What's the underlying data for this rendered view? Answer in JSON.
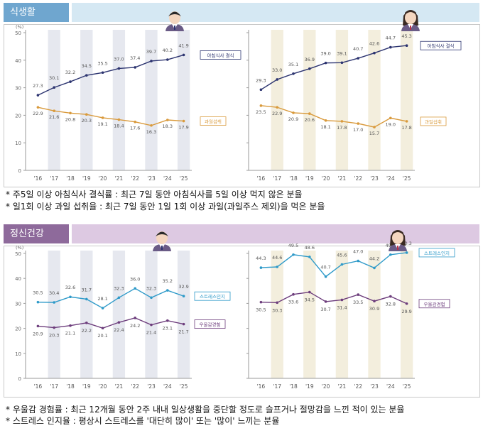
{
  "diet": {
    "title": "식생활",
    "notes": [
      "* 주5일 이상 아침식사 결식률 : 최근 7일 동안 아침식사를 5일 이상 먹지 않은 분율",
      "* 일1회 이상 과일 섭취율 : 최근 7일 동안 1일 1회 이상 과일(과일주스 제외)을 먹은 분율"
    ]
  },
  "mental": {
    "title": "정신건강",
    "notes": [
      "* 우울감 경험률 : 최근 12개월 동안 2주 내내 일상생활을 중단할 정도로 슬프거나 절망감을 느낀 적이 있는 분율",
      "* 스트레스 인지율 : 평상시 스트레스를 '대단히 많이' 또는 '많이' 느끼는 분율"
    ]
  },
  "chart_data": [
    {
      "type": "line",
      "x": [
        "'16",
        "'17",
        "'18",
        "'19",
        "'20",
        "'21",
        "'22",
        "'23",
        "'24",
        "'25"
      ],
      "ylabel": "(%)",
      "ylim": [
        0,
        50
      ],
      "yticks": [
        0,
        10,
        20,
        30,
        40,
        50
      ],
      "colors": {
        "shade": "#e6e8ef"
      },
      "series": [
        {
          "name": "아침식사 결식",
          "color": "#2c3470",
          "values": [
            27.3,
            30.1,
            32.2,
            34.5,
            35.5,
            37.0,
            37.4,
            39.7,
            40.2,
            41.9
          ]
        },
        {
          "name": "과일섭취",
          "color": "#d99a3c",
          "values": [
            22.9,
            21.6,
            20.8,
            20.3,
            19.1,
            18.4,
            17.6,
            16.3,
            18.3,
            17.9
          ]
        }
      ]
    },
    {
      "type": "line",
      "x": [
        "'16",
        "'17",
        "'18",
        "'19",
        "'20",
        "'21",
        "'22",
        "'23",
        "'24",
        "'25"
      ],
      "ylabel": "",
      "ylim": [
        0,
        50
      ],
      "yticks": [
        0,
        10,
        20,
        30,
        40,
        50
      ],
      "colors": {
        "shade": "#f3eedd"
      },
      "series": [
        {
          "name": "아침식사 결식",
          "color": "#2c3470",
          "values": [
            29.3,
            33.0,
            35.1,
            36.9,
            39.0,
            39.1,
            40.7,
            42.6,
            44.7,
            45.3
          ]
        },
        {
          "name": "과일섭취",
          "color": "#d99a3c",
          "values": [
            23.5,
            22.9,
            20.9,
            20.6,
            18.1,
            17.8,
            17.0,
            15.7,
            19.0,
            17.8
          ]
        }
      ]
    },
    {
      "type": "line",
      "x": [
        "'16",
        "'17",
        "'18",
        "'19",
        "'20",
        "'21",
        "'22",
        "'23",
        "'24",
        "'25"
      ],
      "ylabel": "(%)",
      "ylim": [
        0,
        50
      ],
      "yticks": [
        0,
        10,
        20,
        30,
        40,
        50
      ],
      "colors": {
        "shade": "#e6e8ef"
      },
      "series": [
        {
          "name": "스트레스인지",
          "color": "#2e9ac9",
          "values": [
            30.5,
            30.4,
            32.6,
            31.7,
            28.1,
            32.3,
            36.0,
            32.3,
            35.2,
            32.9
          ]
        },
        {
          "name": "우울감경험",
          "color": "#6d3d7c",
          "values": [
            20.9,
            20.3,
            21.1,
            22.2,
            20.1,
            22.4,
            24.2,
            21.4,
            23.1,
            21.7
          ]
        }
      ]
    },
    {
      "type": "line",
      "x": [
        "'16",
        "'17",
        "'18",
        "'19",
        "'20",
        "'21",
        "'22",
        "'23",
        "'24",
        "'25"
      ],
      "ylabel": "",
      "ylim": [
        0,
        50
      ],
      "yticks": [
        0,
        10,
        20,
        30,
        40,
        50
      ],
      "colors": {
        "shade": "#f3eedd"
      },
      "series": [
        {
          "name": "스트레스인지",
          "color": "#2e9ac9",
          "values": [
            44.3,
            44.6,
            49.5,
            48.6,
            40.7,
            45.6,
            47.0,
            44.2,
            49.5,
            50.3
          ]
        },
        {
          "name": "우울감경험",
          "color": "#6d3d7c",
          "values": [
            30.5,
            30.3,
            33.6,
            34.5,
            30.7,
            31.4,
            33.5,
            30.9,
            32.8,
            29.9
          ]
        }
      ]
    }
  ]
}
